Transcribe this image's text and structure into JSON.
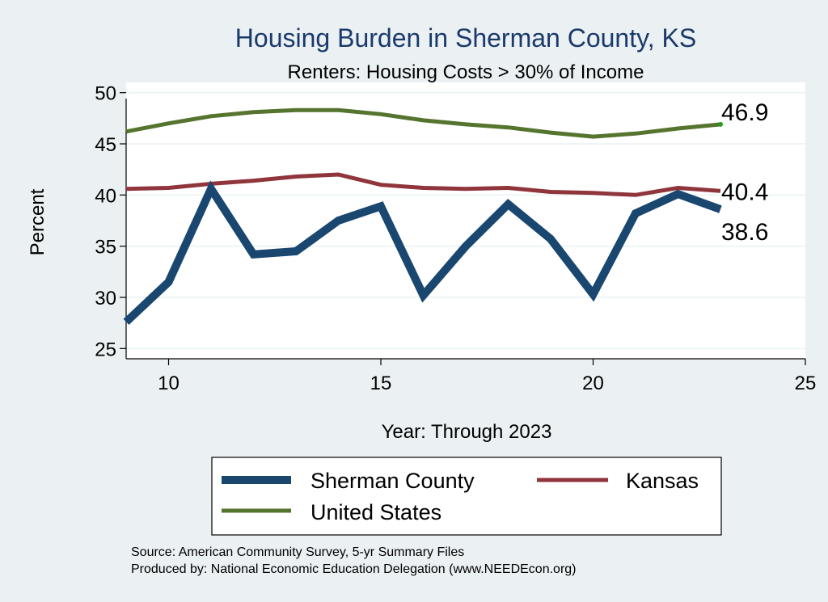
{
  "chart_data": {
    "type": "line",
    "title": "Housing Burden in Sherman County, KS",
    "subtitle": "Renters: Housing Costs > 30% of Income",
    "xlabel": "Year: Through 2023",
    "ylabel": "Percent",
    "xlim": [
      9,
      25
    ],
    "ylim": [
      24,
      51
    ],
    "x_ticks": [
      10,
      15,
      20,
      25
    ],
    "y_ticks": [
      25,
      30,
      35,
      40,
      45,
      50
    ],
    "grid": true,
    "legend_position": "bottom",
    "x": [
      9,
      10,
      11,
      12,
      13,
      14,
      15,
      16,
      17,
      18,
      19,
      20,
      21,
      22,
      23
    ],
    "series": [
      {
        "name": "Sherman County",
        "color": "#1a476f",
        "values": [
          27.6,
          31.5,
          40.6,
          34.2,
          34.5,
          37.5,
          38.9,
          30.2,
          35.0,
          39.1,
          35.7,
          30.3,
          38.2,
          40.1,
          38.6
        ],
        "end_label": "38.6"
      },
      {
        "name": "Kansas",
        "color": "#90353b",
        "values": [
          40.6,
          40.7,
          41.1,
          41.4,
          41.8,
          42.0,
          41.0,
          40.7,
          40.6,
          40.7,
          40.3,
          40.2,
          40.0,
          40.7,
          40.4
        ],
        "end_label": "40.4"
      },
      {
        "name": "United States",
        "color": "#55752f",
        "values": [
          46.2,
          47.0,
          47.7,
          48.1,
          48.3,
          48.3,
          47.9,
          47.3,
          46.9,
          46.6,
          46.1,
          45.7,
          46.0,
          46.5,
          46.9
        ],
        "end_label": "46.9"
      }
    ]
  },
  "source_lines": [
    "Source: American Community Survey, 5-yr Summary Files",
    "Produced by: National Economic Education Delegation (www.NEEDEcon.org)"
  ]
}
